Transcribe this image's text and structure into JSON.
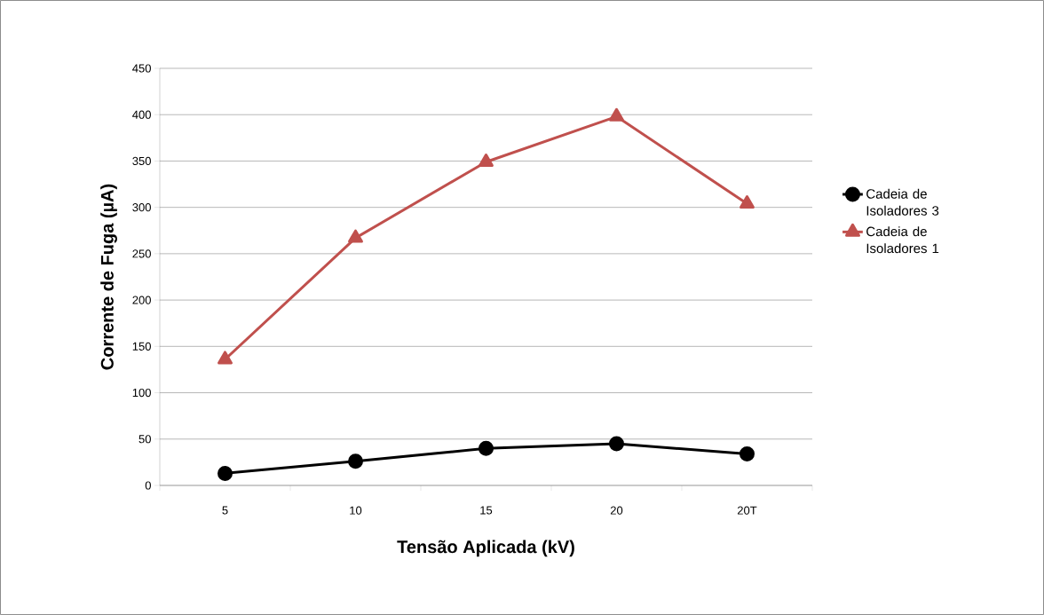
{
  "chart_data": {
    "type": "line",
    "xlabel": "Tensão Aplicada (kV)",
    "ylabel": "Corrente de Fuga (µA)",
    "categories": [
      "5",
      "10",
      "15",
      "20",
      "20T"
    ],
    "series": [
      {
        "name": "Cadeia de Isoladores 3",
        "color": "#000000",
        "marker": "circle",
        "values": [
          13,
          26,
          40,
          45,
          34
        ]
      },
      {
        "name": "Cadeia de Isoladores 1",
        "color": "#c0504d",
        "marker": "triangle",
        "values": [
          136,
          267,
          349,
          398,
          304
        ]
      }
    ],
    "ylim": [
      0,
      450
    ],
    "yticks": [
      0,
      50,
      100,
      150,
      200,
      250,
      300,
      350,
      400,
      450
    ],
    "grid": "y",
    "legend": "right",
    "line_style": "solid"
  }
}
